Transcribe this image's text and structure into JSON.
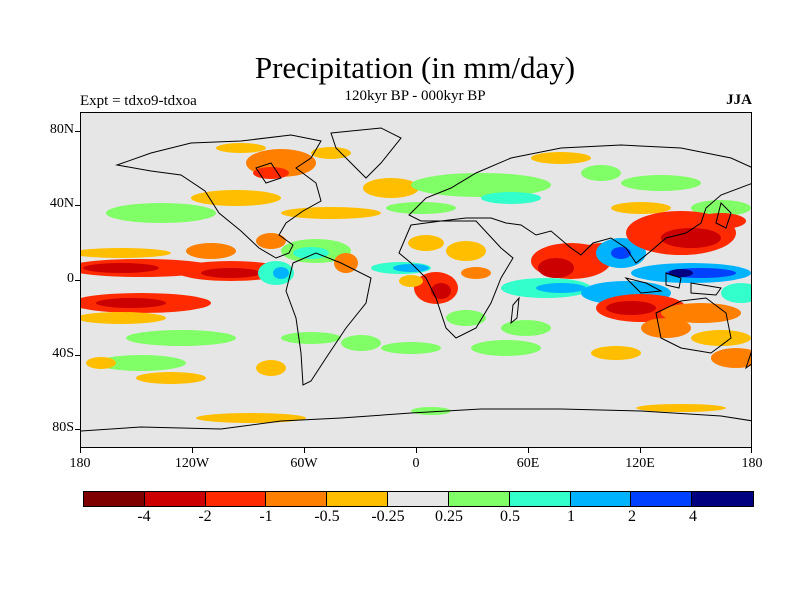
{
  "title": "Precipitation (in mm/day)",
  "subtitle": "120kyr BP - 000kyr BP",
  "experiment": "Expt = tdxo9-tdxoa",
  "season": "JJA",
  "map": {
    "lon_range": [
      -180,
      180
    ],
    "lat_range": [
      -90,
      90
    ],
    "background_color": "#e6e6e6",
    "lat_ticks": [
      {
        "lat": 80,
        "label": "80N"
      },
      {
        "lat": 40,
        "label": "40N"
      },
      {
        "lat": 0,
        "label": "0"
      },
      {
        "lat": -40,
        "label": "40S"
      },
      {
        "lat": -80,
        "label": "80S"
      }
    ],
    "lon_ticks": [
      {
        "lon": -180,
        "label": "180"
      },
      {
        "lon": -120,
        "label": "120W"
      },
      {
        "lon": -60,
        "label": "60W"
      },
      {
        "lon": 0,
        "label": "0"
      },
      {
        "lon": 60,
        "label": "60E"
      },
      {
        "lon": 120,
        "label": "120E"
      },
      {
        "lon": 180,
        "label": "180"
      }
    ]
  },
  "colorbar": {
    "colors": [
      "#7f0000",
      "#cc0000",
      "#ff2a00",
      "#ff7f00",
      "#ffbf00",
      "#e6e6e6",
      "#80ff66",
      "#33ffcc",
      "#00b3ff",
      "#0040ff",
      "#000080"
    ],
    "labels": [
      "-4",
      "-2",
      "-1",
      "-0.5",
      "-0.25",
      "0.25",
      "0.5",
      "1",
      "2",
      "4"
    ]
  }
}
